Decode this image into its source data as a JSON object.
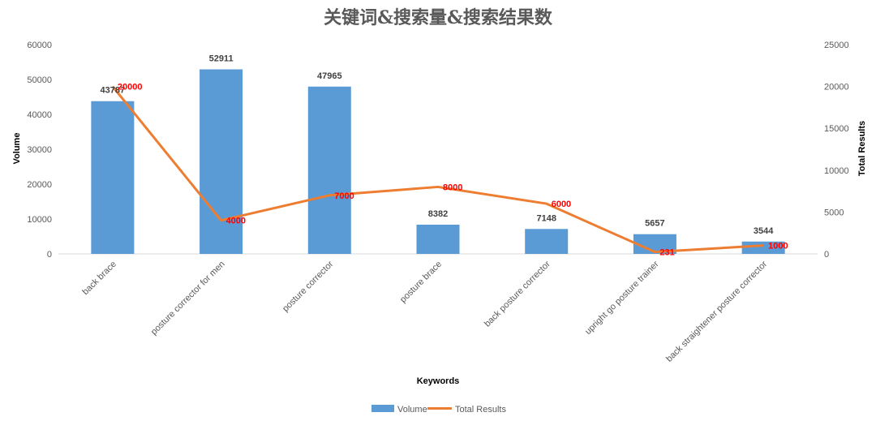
{
  "chart_data": {
    "type": "bar",
    "title": "关键词&搜索量&搜索结果数",
    "xlabel": "Keywords",
    "ylabel": "Volume",
    "y2label": "Total Results",
    "ylim": [
      0,
      60000
    ],
    "y2lim": [
      0,
      25000
    ],
    "yticks": [
      "0",
      "10000",
      "20000",
      "30000",
      "40000",
      "50000",
      "60000"
    ],
    "y2ticks": [
      "0",
      "5000",
      "10000",
      "15000",
      "20000",
      "25000"
    ],
    "categories": [
      "back brace",
      "posture corrector for men",
      "posture corrector",
      "posture brace",
      "back posture corrector",
      "upright go posture trainer",
      "back straightener posture corrector"
    ],
    "series": [
      {
        "name": "Volume",
        "type": "bar",
        "axis": "left",
        "color": "#5b9bd5",
        "values": [
          43787,
          52911,
          47965,
          8382,
          7148,
          5657,
          3544
        ]
      },
      {
        "name": "Total Results",
        "type": "line",
        "axis": "right",
        "color": "#ed7d31",
        "values": [
          20000,
          4000,
          7000,
          8000,
          6000,
          231,
          1000
        ]
      }
    ],
    "legend_position": "bottom",
    "grid": false
  }
}
